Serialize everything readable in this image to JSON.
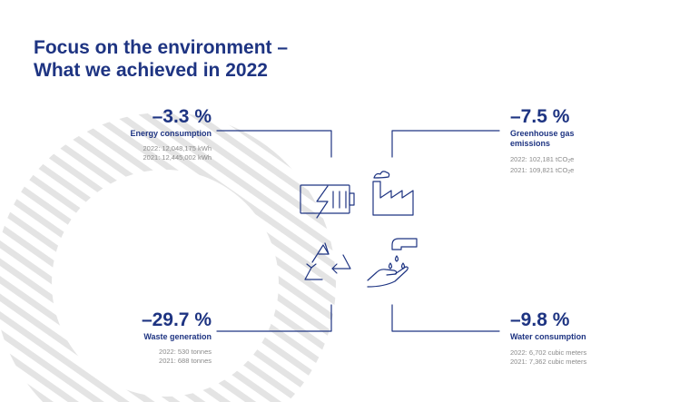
{
  "title": {
    "line1": "Focus on the environment –",
    "line2": "What we achieved in 2022"
  },
  "stats": {
    "energy": {
      "pct": "–3.3 %",
      "label": "Energy consumption",
      "line_2022": "2022: 12,048,175 kWh",
      "line_2021": "2021: 12,445,002 kWh",
      "icon": "battery-lightning-icon"
    },
    "ghg": {
      "pct": "–7.5 %",
      "label_line1": "Greenhouse gas",
      "label_line2": "emissions",
      "line_2022_prefix": "2022: 102,181 tCO",
      "line_2021_prefix": "2021: 109,821 tCO",
      "sub": "2",
      "suffix": "e",
      "icon": "factory-icon"
    },
    "waste": {
      "pct": "–29.7 %",
      "label": "Waste generation",
      "line_2022": "2022: 530 tonnes",
      "line_2021": "2021: 688 tonnes",
      "icon": "recycle-icon"
    },
    "water": {
      "pct": "–9.8 %",
      "label": "Water consumption",
      "line_2022": "2022: 6,702 cubic meters",
      "line_2021": "2021: 7,362 cubic meters",
      "icon": "faucet-hand-icon"
    }
  },
  "colors": {
    "brand": "#1e3482",
    "muted": "#8a8a8a",
    "stripes": "#e4e4e4"
  }
}
